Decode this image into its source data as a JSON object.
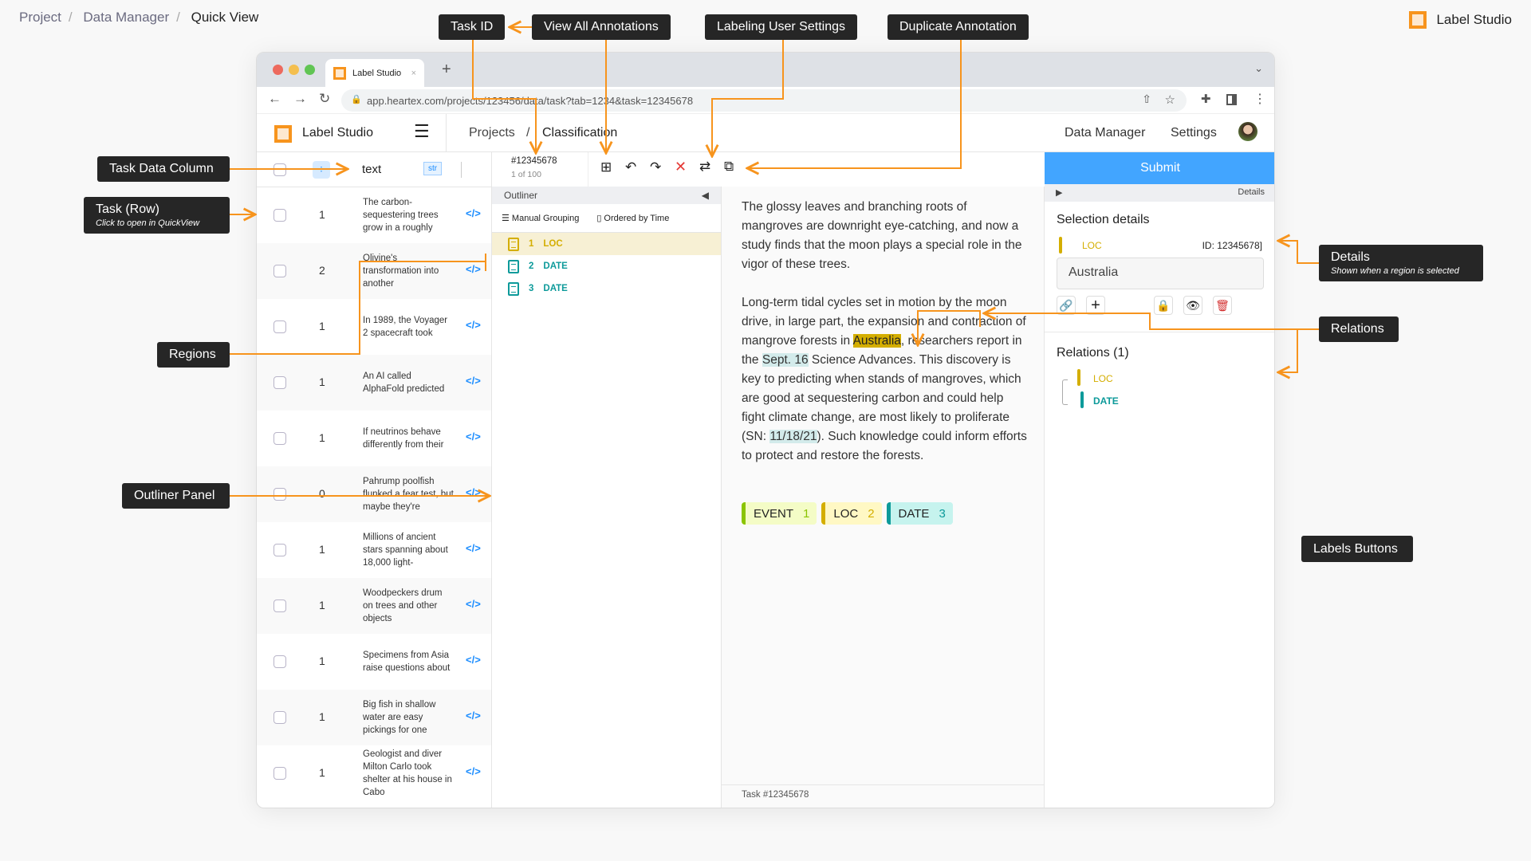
{
  "breadcrumb": [
    "Project",
    "Data Manager",
    "Quick View"
  ],
  "brand": "Label Studio",
  "callouts": {
    "task_id": "Task ID",
    "view_all": "View All Annotations",
    "user_settings": "Labeling User Settings",
    "duplicate": "Duplicate Annotation",
    "task_data_column": "Task Data Column",
    "task_row": "Task (Row)",
    "task_row_sub": "Click to open in QuickView",
    "regions": "Regions",
    "outliner": "Outliner Panel",
    "details": "Details",
    "details_sub": "Shown when a region is selected",
    "relations": "Relations",
    "labels_buttons": "Labels Buttons"
  },
  "browser": {
    "tab_title": "Label Studio",
    "url": "app.heartex.com/projects/123456/data/task?tab=1234&task=12345678"
  },
  "app": {
    "title": "Label Studio",
    "crumb_projects": "Projects",
    "crumb_sep": "/",
    "crumb_project": "Classification",
    "nav": [
      "Data Manager",
      "Settings"
    ]
  },
  "list": {
    "column": "text",
    "type_badge": "str",
    "rows": [
      {
        "count": "1",
        "text": "The carbon-sequestering trees grow in a roughly"
      },
      {
        "count": "2",
        "text": "Olivine's transformation into another"
      },
      {
        "count": "1",
        "text": "In 1989, the Voyager 2 spacecraft took"
      },
      {
        "count": "1",
        "text": "An AI called AlphaFold predicted"
      },
      {
        "count": "1",
        "text": "If neutrinos behave differently from their"
      },
      {
        "count": "0",
        "text": "Pahrump poolfish flunked a fear test, but maybe they're"
      },
      {
        "count": "1",
        "text": "Millions of ancient stars spanning about 18,000 light-"
      },
      {
        "count": "1",
        "text": "Woodpeckers drum on trees and other objects"
      },
      {
        "count": "1",
        "text": "Specimens from Asia raise questions about"
      },
      {
        "count": "1",
        "text": "Big fish in shallow water are easy pickings for one"
      },
      {
        "count": "1",
        "text": "Geologist and diver Milton Carlo took shelter at his house in Cabo"
      }
    ]
  },
  "task": {
    "id": "#12345678",
    "position": "1 of 100",
    "footer": "Task #12345678"
  },
  "outliner": {
    "title": "Outliner",
    "grouping": "Manual Grouping",
    "order": "Ordered by Time",
    "regions": [
      {
        "num": "1",
        "label": "LOC",
        "color": "#d4ae00"
      },
      {
        "num": "2",
        "label": "DATE",
        "color": "#0d9a9a"
      },
      {
        "num": "3",
        "label": "DATE",
        "color": "#0d9a9a"
      }
    ]
  },
  "text": {
    "p1": "The glossy leaves and branching roots of mangroves are downright eye-catching, and now a study finds that the moon plays a special role in the vigor of these trees.",
    "p2a": "Long-term tidal cycles set in motion by the moon drive, in large part, the expansion and contraction of mangrove forests in ",
    "p2_loc": "Australia",
    "p2b": ", researchers report in the ",
    "p2_date1": "Sept. 16",
    "p2c": " Science Advances. This discovery is key to predicting when stands of mangroves, which are good at sequestering carbon and could help fight climate change, are most likely to proliferate (SN: ",
    "p2_date2": "11/18/21",
    "p2d": "). Such knowledge could inform efforts to protect and restore the forests."
  },
  "labels": [
    {
      "name": "EVENT",
      "hotkey": "1",
      "color": "#8bc400",
      "bg": "#f4fcc6"
    },
    {
      "name": "LOC",
      "hotkey": "2",
      "color": "#d4ae00",
      "bg": "#fff8c4"
    },
    {
      "name": "DATE",
      "hotkey": "3",
      "color": "#0d9a9a",
      "bg": "#c6f3ee"
    }
  ],
  "panel": {
    "submit": "Submit",
    "details_tab": "Details",
    "selection_title": "Selection details",
    "region_label": "LOC",
    "region_id": "ID: 12345678]",
    "region_text": "Australia",
    "relations_title": "Relations (1)",
    "relation_from": "LOC",
    "relation_to": "DATE"
  },
  "colors": {
    "accent": "#f7941d",
    "submit": "#42a5ff",
    "loc": "#d4ae00",
    "date": "#0d9a9a"
  }
}
